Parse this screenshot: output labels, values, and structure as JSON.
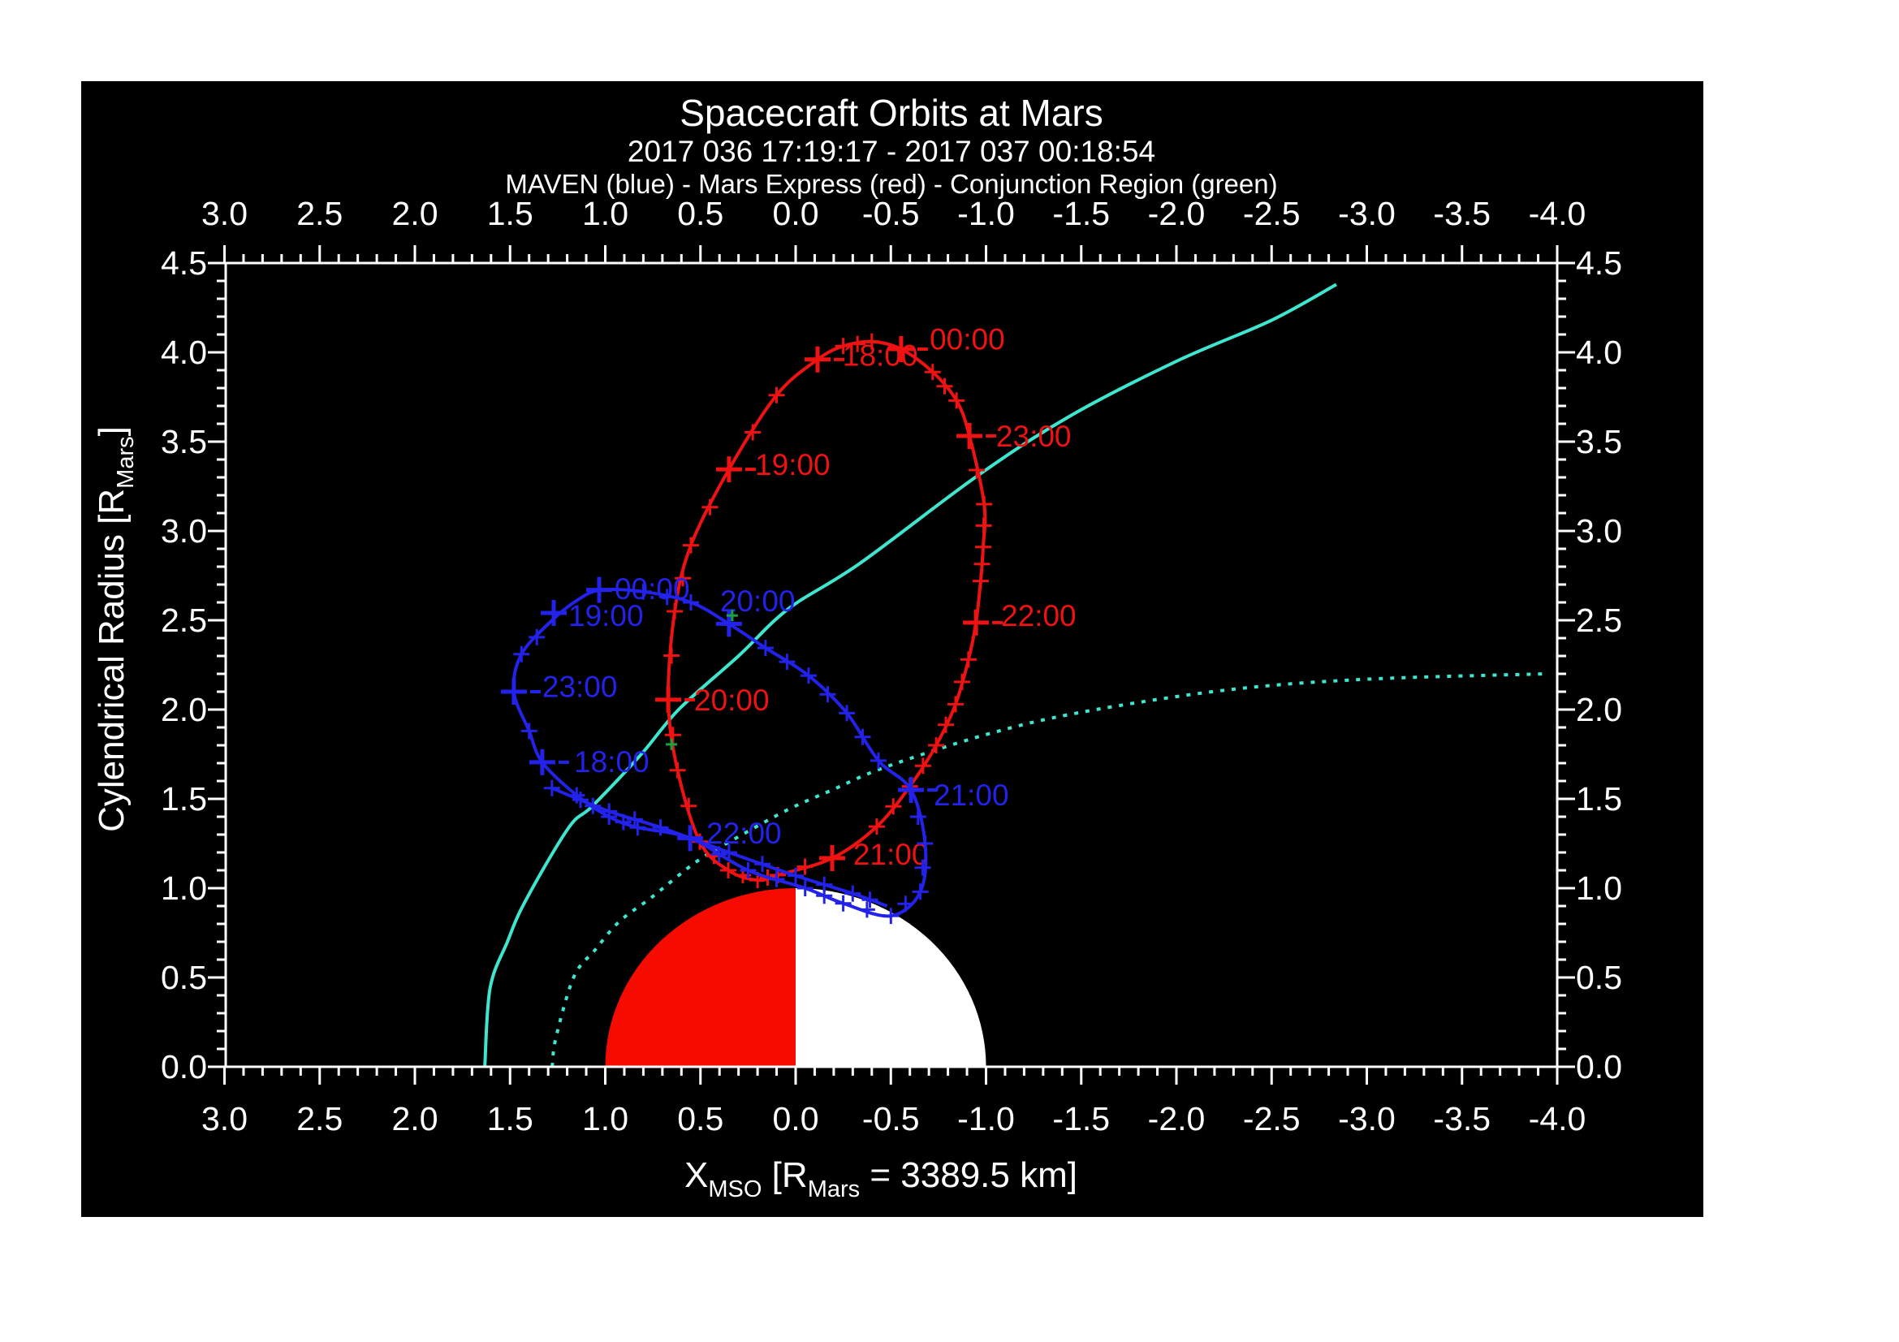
{
  "header": {
    "title": "Spacecraft Orbits at Mars",
    "subtitle": "2017 036 17:19:17 - 2017 037 00:18:54",
    "legend_line": "MAVEN (blue) - Mars Express (red) - Conjunction Region (green)"
  },
  "chart_data": {
    "type": "line",
    "title": "Spacecraft Orbits at Mars",
    "subtitle": "2017 036 17:19:17 - 2017 037 00:18:54",
    "legend_line": "MAVEN (blue) - Mars Express (red) - Conjunction Region (green)",
    "background_color": "#000000",
    "frame_color": "#ffffff",
    "x_axis": {
      "label": "X_MSO [R_Mars = 3389.5 km]",
      "label_parts": [
        {
          "t": "X"
        },
        {
          "t": "MSO",
          "sub": true
        },
        {
          "t": " [R"
        },
        {
          "t": "Mars",
          "sub": true
        },
        {
          "t": " = 3389.5 km]"
        }
      ],
      "range": [
        3.0,
        -4.0
      ],
      "tick_step": 0.5,
      "minor_step": 0.1,
      "ticks": [
        "3.0",
        "2.5",
        "2.0",
        "1.5",
        "1.0",
        "0.5",
        "0.0",
        "-0.5",
        "-1.0",
        "-1.5",
        "-2.0",
        "-2.5",
        "-3.0",
        "-3.5",
        "-4.0"
      ],
      "mirrored_top": true
    },
    "y_axis": {
      "label": "Cylendrical Radius [R_Mars]",
      "label_parts": [
        {
          "t": "Cylendrical Radius [R"
        },
        {
          "t": "Mars",
          "sub": true
        },
        {
          "t": "]"
        }
      ],
      "range": [
        0.0,
        4.5
      ],
      "tick_step": 0.5,
      "minor_step": 0.1,
      "ticks": [
        "0.0",
        "0.5",
        "1.0",
        "1.5",
        "2.0",
        "2.5",
        "3.0",
        "3.5",
        "4.0",
        "4.5"
      ],
      "mirrored_right": true
    },
    "mars": {
      "radius_rm": 1.0,
      "radius_km": 3389.5,
      "dayside_color": "#f60b00",
      "nightside_color": "#ffffff"
    },
    "boundaries": [
      {
        "name": "bow-shock",
        "style": "solid",
        "color": "#3fe6cf",
        "points": [
          [
            1.633,
            0.0
          ],
          [
            1.605,
            0.44
          ],
          [
            1.514,
            0.7
          ],
          [
            1.42,
            0.927
          ],
          [
            1.194,
            1.336
          ],
          [
            1.066,
            1.461
          ],
          [
            0.815,
            1.745
          ],
          [
            0.61,
            2.005
          ],
          [
            0.3,
            2.3
          ],
          [
            0.038,
            2.564
          ],
          [
            -0.337,
            2.818
          ],
          [
            -0.95,
            3.305
          ],
          [
            -1.437,
            3.641
          ],
          [
            -2.0,
            3.95
          ],
          [
            -2.5,
            4.18
          ],
          [
            -2.84,
            4.38
          ]
        ]
      },
      {
        "name": "magnetic-pileup-boundary",
        "style": "dotted",
        "color": "#3fe6cf",
        "points": [
          [
            1.279,
            0.0
          ],
          [
            1.258,
            0.168
          ],
          [
            1.164,
            0.505
          ],
          [
            1.053,
            0.655
          ],
          [
            0.925,
            0.814
          ],
          [
            0.755,
            0.95
          ],
          [
            0.512,
            1.155
          ],
          [
            0.28,
            1.3
          ],
          [
            0.04,
            1.44
          ],
          [
            -0.192,
            1.55
          ],
          [
            -0.469,
            1.677
          ],
          [
            -1.0,
            1.86
          ],
          [
            -1.5,
            1.985
          ],
          [
            -2.26,
            2.109
          ],
          [
            -3.0,
            2.17
          ],
          [
            -3.94,
            2.2
          ]
        ]
      }
    ],
    "orbits": [
      {
        "name": "Mars Express",
        "color": "#ee1212",
        "closed": true,
        "loop": [
          [
            -0.115,
            3.96
          ],
          [
            0.1,
            3.76
          ],
          [
            0.35,
            3.345
          ],
          [
            0.55,
            2.92
          ],
          [
            0.635,
            2.55
          ],
          [
            0.669,
            2.055
          ],
          [
            0.62,
            1.66
          ],
          [
            0.503,
            1.26
          ],
          [
            0.354,
            1.1
          ],
          [
            0.2,
            1.045
          ],
          [
            0.094,
            1.073
          ],
          [
            -0.192,
            1.168
          ],
          [
            -0.426,
            1.345
          ],
          [
            -0.6,
            1.57
          ],
          [
            -0.738,
            1.8
          ],
          [
            -0.84,
            2.03
          ],
          [
            -0.908,
            2.28
          ],
          [
            -0.947,
            2.487
          ],
          [
            -0.972,
            2.72
          ],
          [
            -0.985,
            2.91
          ],
          [
            -0.99,
            3.15
          ],
          [
            -0.913,
            3.532
          ],
          [
            -0.845,
            3.73
          ],
          [
            -0.72,
            3.89
          ],
          [
            -0.554,
            4.018
          ],
          [
            -0.4,
            4.06
          ],
          [
            -0.25,
            4.035
          ]
        ],
        "extra_segment": [],
        "hours": [
          {
            "label": "18:00",
            "x": -0.115,
            "y": 3.96,
            "lx": -0.247,
            "ly": 3.985
          },
          {
            "label": "19:00",
            "x": 0.35,
            "y": 3.345,
            "lx": 0.213,
            "ly": 3.373
          },
          {
            "label": "20:00",
            "x": 0.669,
            "y": 2.055,
            "lx": 0.533,
            "ly": 2.055
          },
          {
            "label": "21:00",
            "x": -0.192,
            "y": 1.168,
            "lx": -0.302,
            "ly": 1.19
          },
          {
            "label": "22:00",
            "x": -0.947,
            "y": 2.487,
            "lx": -1.079,
            "ly": 2.527
          },
          {
            "label": "23:00",
            "x": -0.913,
            "y": 3.532,
            "lx": -1.053,
            "ly": 3.532
          },
          {
            "label": "00:00",
            "x": -0.554,
            "y": 4.018,
            "lx": -0.704,
            "ly": 4.075
          }
        ]
      },
      {
        "name": "MAVEN",
        "color": "#2222ea",
        "closed": true,
        "loop": [
          [
            1.331,
            1.705
          ],
          [
            1.4,
            1.88
          ],
          [
            1.48,
            2.1
          ],
          [
            1.44,
            2.31
          ],
          [
            1.279,
            2.5
          ],
          [
            1.15,
            2.61
          ],
          [
            1.028,
            2.668
          ],
          [
            0.8,
            2.66
          ],
          [
            0.55,
            2.6
          ],
          [
            0.35,
            2.48
          ],
          [
            0.158,
            2.345
          ],
          [
            -0.068,
            2.19
          ],
          [
            -0.269,
            1.98
          ],
          [
            -0.435,
            1.714
          ],
          [
            -0.606,
            1.55
          ],
          [
            -0.68,
            1.25
          ],
          [
            -0.655,
            0.98
          ],
          [
            -0.5,
            0.845
          ],
          [
            -0.25,
            0.915
          ],
          [
            -0.05,
            1.0
          ],
          [
            0.25,
            1.1
          ],
          [
            0.554,
            1.28
          ],
          [
            0.83,
            1.34
          ],
          [
            0.98,
            1.4
          ],
          [
            1.15,
            1.52
          ]
        ],
        "extra_segment": [
          [
            1.28,
            1.56
          ],
          [
            0.98,
            1.43
          ],
          [
            0.71,
            1.34
          ],
          [
            0.35,
            1.2
          ],
          [
            0.0,
            1.07
          ],
          [
            -0.3,
            0.97
          ],
          [
            -0.48,
            0.9
          ]
        ],
        "hours": [
          {
            "label": "18:00",
            "x": 1.331,
            "y": 1.705,
            "lx": 1.164,
            "ly": 1.709
          },
          {
            "label": "19:00",
            "x": 1.271,
            "y": 2.541,
            "lx": 1.194,
            "ly": 2.527
          },
          {
            "label": "20:00",
            "x": 0.35,
            "y": 2.48,
            "lx": 0.397,
            "ly": 2.609
          },
          {
            "label": "21:00",
            "x": -0.606,
            "y": 1.55,
            "lx": -0.725,
            "ly": 1.523
          },
          {
            "label": "22:00",
            "x": 0.554,
            "y": 1.28,
            "lx": 0.469,
            "ly": 1.31
          },
          {
            "label": "23:00",
            "x": 1.48,
            "y": 2.1,
            "lx": 1.331,
            "ly": 2.13
          },
          {
            "label": "00:00",
            "x": 1.032,
            "y": 2.67,
            "lx": 0.951,
            "ly": 2.677
          }
        ]
      }
    ],
    "conjunction": {
      "color": "#1ca23c",
      "marks": [
        [
          0.333,
          2.527
        ],
        [
          0.652,
          1.805
        ]
      ]
    }
  }
}
